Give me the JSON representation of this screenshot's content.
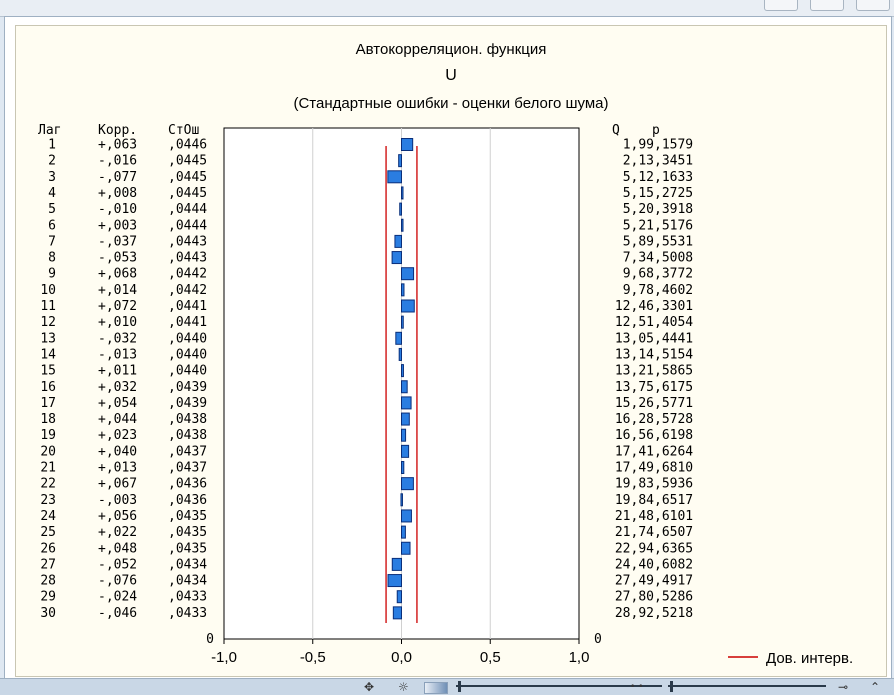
{
  "chart_data": {
    "type": "bar",
    "title": "Автокорреляцион. функция",
    "subtitle": "U",
    "note": "(Стандартные ошибки - оценки белого шума)",
    "columns": {
      "lag": "Лаг",
      "corr": "Корр.",
      "se": "СтОш",
      "q": "Q",
      "p": "p"
    },
    "rows": [
      {
        "lag": "1",
        "corr_label": "+,063",
        "se_label": ",0446",
        "q_label": "1,99",
        "p_label": ",1579",
        "corr": 0.063,
        "se": 0.0446
      },
      {
        "lag": "2",
        "corr_label": "-,016",
        "se_label": ",0445",
        "q_label": "2,13",
        "p_label": ",3451",
        "corr": -0.016,
        "se": 0.0445
      },
      {
        "lag": "3",
        "corr_label": "-,077",
        "se_label": ",0445",
        "q_label": "5,12",
        "p_label": ",1633",
        "corr": -0.077,
        "se": 0.0445
      },
      {
        "lag": "4",
        "corr_label": "+,008",
        "se_label": ",0445",
        "q_label": "5,15",
        "p_label": ",2725",
        "corr": 0.008,
        "se": 0.0445
      },
      {
        "lag": "5",
        "corr_label": "-,010",
        "se_label": ",0444",
        "q_label": "5,20",
        "p_label": ",3918",
        "corr": -0.01,
        "se": 0.0444
      },
      {
        "lag": "6",
        "corr_label": "+,003",
        "se_label": ",0444",
        "q_label": "5,21",
        "p_label": ",5176",
        "corr": 0.003,
        "se": 0.0444
      },
      {
        "lag": "7",
        "corr_label": "-,037",
        "se_label": ",0443",
        "q_label": "5,89",
        "p_label": ",5531",
        "corr": -0.037,
        "se": 0.0443
      },
      {
        "lag": "8",
        "corr_label": "-,053",
        "se_label": ",0443",
        "q_label": "7,34",
        "p_label": ",5008",
        "corr": -0.053,
        "se": 0.0443
      },
      {
        "lag": "9",
        "corr_label": "+,068",
        "se_label": ",0442",
        "q_label": "9,68",
        "p_label": ",3772",
        "corr": 0.068,
        "se": 0.0442
      },
      {
        "lag": "10",
        "corr_label": "+,014",
        "se_label": ",0442",
        "q_label": "9,78",
        "p_label": ",4602",
        "corr": 0.014,
        "se": 0.0442
      },
      {
        "lag": "11",
        "corr_label": "+,072",
        "se_label": ",0441",
        "q_label": "12,46",
        "p_label": ",3301",
        "corr": 0.072,
        "se": 0.0441
      },
      {
        "lag": "12",
        "corr_label": "+,010",
        "se_label": ",0441",
        "q_label": "12,51",
        "p_label": ",4054",
        "corr": 0.01,
        "se": 0.0441
      },
      {
        "lag": "13",
        "corr_label": "-,032",
        "se_label": ",0440",
        "q_label": "13,05",
        "p_label": ",4441",
        "corr": -0.032,
        "se": 0.044
      },
      {
        "lag": "14",
        "corr_label": "-,013",
        "se_label": ",0440",
        "q_label": "13,14",
        "p_label": ",5154",
        "corr": -0.013,
        "se": 0.044
      },
      {
        "lag": "15",
        "corr_label": "+,011",
        "se_label": ",0440",
        "q_label": "13,21",
        "p_label": ",5865",
        "corr": 0.011,
        "se": 0.044
      },
      {
        "lag": "16",
        "corr_label": "+,032",
        "se_label": ",0439",
        "q_label": "13,75",
        "p_label": ",6175",
        "corr": 0.032,
        "se": 0.0439
      },
      {
        "lag": "17",
        "corr_label": "+,054",
        "se_label": ",0439",
        "q_label": "15,26",
        "p_label": ",5771",
        "corr": 0.054,
        "se": 0.0439
      },
      {
        "lag": "18",
        "corr_label": "+,044",
        "se_label": ",0438",
        "q_label": "16,28",
        "p_label": ",5728",
        "corr": 0.044,
        "se": 0.0438
      },
      {
        "lag": "19",
        "corr_label": "+,023",
        "se_label": ",0438",
        "q_label": "16,56",
        "p_label": ",6198",
        "corr": 0.023,
        "se": 0.0438
      },
      {
        "lag": "20",
        "corr_label": "+,040",
        "se_label": ",0437",
        "q_label": "17,41",
        "p_label": ",6264",
        "corr": 0.04,
        "se": 0.0437
      },
      {
        "lag": "21",
        "corr_label": "+,013",
        "se_label": ",0437",
        "q_label": "17,49",
        "p_label": ",6810",
        "corr": 0.013,
        "se": 0.0437
      },
      {
        "lag": "22",
        "corr_label": "+,067",
        "se_label": ",0436",
        "q_label": "19,83",
        "p_label": ",5936",
        "corr": 0.067,
        "se": 0.0436
      },
      {
        "lag": "23",
        "corr_label": "-,003",
        "se_label": ",0436",
        "q_label": "19,84",
        "p_label": ",6517",
        "corr": -0.003,
        "se": 0.0436
      },
      {
        "lag": "24",
        "corr_label": "+,056",
        "se_label": ",0435",
        "q_label": "21,48",
        "p_label": ",6101",
        "corr": 0.056,
        "se": 0.0435
      },
      {
        "lag": "25",
        "corr_label": "+,022",
        "se_label": ",0435",
        "q_label": "21,74",
        "p_label": ",6507",
        "corr": 0.022,
        "se": 0.0435
      },
      {
        "lag": "26",
        "corr_label": "+,048",
        "se_label": ",0435",
        "q_label": "22,94",
        "p_label": ",6365",
        "corr": 0.048,
        "se": 0.0435
      },
      {
        "lag": "27",
        "corr_label": "-,052",
        "se_label": ",0434",
        "q_label": "24,40",
        "p_label": ",6082",
        "corr": -0.052,
        "se": 0.0434
      },
      {
        "lag": "28",
        "corr_label": "-,076",
        "se_label": ",0434",
        "q_label": "27,49",
        "p_label": ",4917",
        "corr": -0.076,
        "se": 0.0434
      },
      {
        "lag": "29",
        "corr_label": "-,024",
        "se_label": ",0433",
        "q_label": "27,80",
        "p_label": ",5286",
        "corr": -0.024,
        "se": 0.0433
      },
      {
        "lag": "30",
        "corr_label": "-,046",
        "se_label": ",0433",
        "q_label": "28,92",
        "p_label": ",5218",
        "corr": -0.046,
        "se": 0.0433
      }
    ],
    "xlim": [
      -1.0,
      1.0
    ],
    "xticks": [
      -1.0,
      -0.5,
      0.0,
      0.5,
      1.0
    ],
    "xtick_labels": [
      "-1,0",
      "-0,5",
      "0,0",
      "0,5",
      "1,0"
    ],
    "y_extra_label": "0",
    "confidence_limit": 0.087,
    "legend": {
      "label": "Дов. интерв.",
      "placement": "bottom-right"
    },
    "grid": true,
    "colors": {
      "bar_fill": "#2a7de1",
      "bar_stroke": "#0a2f7a",
      "conf_line": "#cc0000",
      "plot_bg": "#ffffff",
      "frame_bg": "#fffdf2",
      "grid": "#d0d0d0"
    }
  }
}
